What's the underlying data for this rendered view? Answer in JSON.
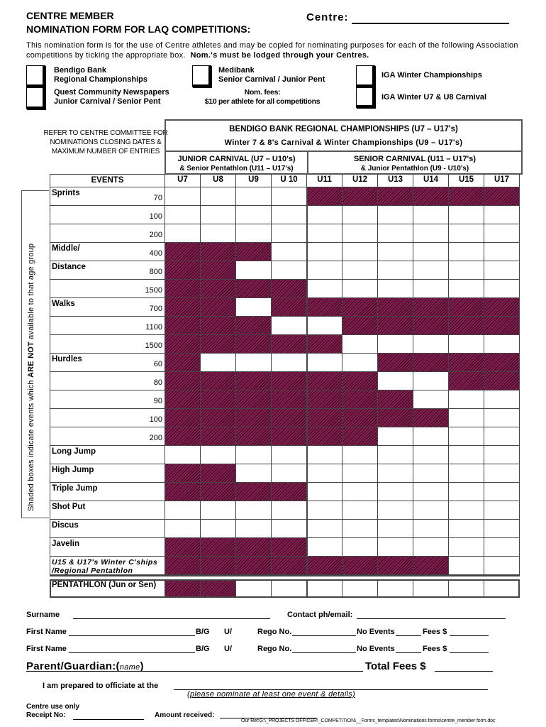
{
  "header": {
    "title_line1": "CENTRE MEMBER",
    "title_line2": "NOMINATION FORM FOR LAQ COMPETITIONS:",
    "centre_label": "Centre:"
  },
  "intro": {
    "text": "This nomination form is for the use of Centre athletes and may be copied for nominating purposes for each of the following Association competitions by ticking the appropriate box.",
    "bold": "Nom.'s must be lodged through your Centres."
  },
  "competitions": [
    {
      "line1": "Bendigo Bank",
      "line2": "Regional Championships"
    },
    {
      "line1": "Quest Community Newspapers",
      "line2": "Junior Carnival / Senior Pent"
    },
    {
      "line1": "Medibank",
      "line2": "Senior Carnival  /  Junior Pent"
    },
    {
      "line1": "IGA Winter Championships",
      "line2": ""
    },
    {
      "line1": "IGA Winter U7 & U8 Carnival",
      "line2": ""
    }
  ],
  "fees": {
    "line1": "Nom. fees:",
    "line2": "$10 per athlete for all competitions"
  },
  "refer_note": "REFER TO CENTRE COMMITTEE FOR NOMINATIONS CLOSING DATES & MAXIMUM NUMBER OF ENTRIES",
  "table": {
    "header_line1": "BENDIGO BANK REGIONAL CHAMPIONSHIPS (U7 – U17's)",
    "header_line2": "Winter 7 & 8's Carnival & Winter Championships (U9 – U17's)",
    "junior_line1": "JUNIOR CARNIVAL (U7 – U10's)",
    "junior_line2": "& Senior Pentathlon (U11 – U17's)",
    "senior_line1": "SENIOR CARNIVAL (U11 – U17's)",
    "senior_line2": "& Junior Pentathlon (U9 - U10's)",
    "events_label": "EVENTS",
    "age_groups": [
      "U7",
      "U8",
      "U9",
      "U 10",
      "U11",
      "U12",
      "U13",
      "U14",
      "U15",
      "U17"
    ],
    "shade_color": "#8a1d52",
    "rows": [
      {
        "event": "Sprints",
        "distance": "70",
        "shaded": [
          0,
          0,
          0,
          0,
          1,
          1,
          1,
          1,
          1,
          1
        ]
      },
      {
        "event": "",
        "distance": "100",
        "shaded": [
          0,
          0,
          0,
          0,
          0,
          0,
          0,
          0,
          0,
          0
        ]
      },
      {
        "event": "",
        "distance": "200",
        "shaded": [
          0,
          0,
          0,
          0,
          0,
          0,
          0,
          0,
          0,
          0
        ]
      },
      {
        "event": "Middle/",
        "distance": "400",
        "shaded": [
          1,
          1,
          1,
          0,
          0,
          0,
          0,
          0,
          0,
          0
        ]
      },
      {
        "event": "Distance",
        "distance": "800",
        "shaded": [
          1,
          1,
          0,
          0,
          0,
          0,
          0,
          0,
          0,
          0
        ]
      },
      {
        "event": "",
        "distance": "1500",
        "shaded": [
          1,
          1,
          1,
          1,
          0,
          0,
          0,
          0,
          0,
          0
        ]
      },
      {
        "event": "Walks",
        "distance": "700",
        "shaded": [
          1,
          1,
          0,
          1,
          1,
          1,
          1,
          1,
          1,
          1
        ]
      },
      {
        "event": "",
        "distance": "1100",
        "shaded": [
          1,
          1,
          1,
          0,
          0,
          1,
          1,
          1,
          1,
          1
        ]
      },
      {
        "event": "",
        "distance": "1500",
        "shaded": [
          1,
          1,
          1,
          1,
          1,
          0,
          0,
          0,
          0,
          0
        ]
      },
      {
        "event": "Hurdles",
        "distance": "60",
        "shaded": [
          1,
          0,
          0,
          0,
          0,
          0,
          1,
          1,
          1,
          1
        ]
      },
      {
        "event": "",
        "distance": "80",
        "shaded": [
          1,
          1,
          1,
          1,
          1,
          1,
          0,
          0,
          1,
          1
        ]
      },
      {
        "event": "",
        "distance": "90",
        "shaded": [
          1,
          1,
          1,
          1,
          1,
          1,
          1,
          0,
          0,
          0
        ]
      },
      {
        "event": "",
        "distance": "100",
        "shaded": [
          1,
          1,
          1,
          1,
          1,
          1,
          1,
          1,
          0,
          0
        ]
      },
      {
        "event": "",
        "distance": "200",
        "shaded": [
          1,
          1,
          1,
          1,
          1,
          1,
          0,
          0,
          0,
          0
        ]
      },
      {
        "event": "Long Jump",
        "distance": "",
        "shaded": [
          0,
          0,
          0,
          0,
          0,
          0,
          0,
          0,
          0,
          0
        ]
      },
      {
        "event": "High Jump",
        "distance": "",
        "shaded": [
          1,
          1,
          0,
          0,
          0,
          0,
          0,
          0,
          0,
          0
        ]
      },
      {
        "event": "Triple Jump",
        "distance": "",
        "shaded": [
          1,
          1,
          1,
          1,
          0,
          0,
          0,
          0,
          0,
          0
        ]
      },
      {
        "event": "Shot Put",
        "distance": "",
        "shaded": [
          0,
          0,
          0,
          0,
          0,
          0,
          0,
          0,
          0,
          0
        ]
      },
      {
        "event": "Discus",
        "distance": "",
        "shaded": [
          0,
          0,
          0,
          0,
          0,
          0,
          0,
          0,
          0,
          0
        ]
      },
      {
        "event": "Javelin",
        "distance": "",
        "shaded": [
          1,
          1,
          1,
          1,
          0,
          0,
          0,
          0,
          0,
          0
        ]
      },
      {
        "event": "U15 & U17's Winter C'ships /Regional Pentathlon",
        "distance": "",
        "italic": true,
        "shaded": [
          1,
          1,
          1,
          1,
          1,
          1,
          1,
          1,
          0,
          0
        ]
      }
    ],
    "pentathlon": {
      "event": "PENTATHLON (Jun or Sen)",
      "shaded": [
        1,
        1,
        0,
        0,
        0,
        0,
        0,
        0,
        0,
        0
      ]
    }
  },
  "side_note": {
    "pre": "Shaded boxes indicate events which ",
    "bold": "ARE NOT",
    "post": " available to that age group"
  },
  "form": {
    "surname": "Surname",
    "contact": "Contact ph/email:",
    "first_name": "First Name",
    "bg": "B/G",
    "u": "U/",
    "rego": "Rego No.",
    "no_events": "No Events",
    "fees": "Fees $",
    "parent": "Parent/Guardian:(",
    "parent_name": "name",
    "parent_close": ")",
    "total_fees": "Total Fees $",
    "officiate": "I am prepared to officiate at the",
    "officiate_note": "(please nominate at least one event & details)",
    "centre_use": "Centre use only",
    "receipt": "Receipt No:",
    "amount": "Amount received:",
    "ref": "Our Ref:G:\\_PROJECTS OFFICER\\_COMPETITION\\__Forms_templates\\Nominations forms\\centre_member form.doc"
  }
}
